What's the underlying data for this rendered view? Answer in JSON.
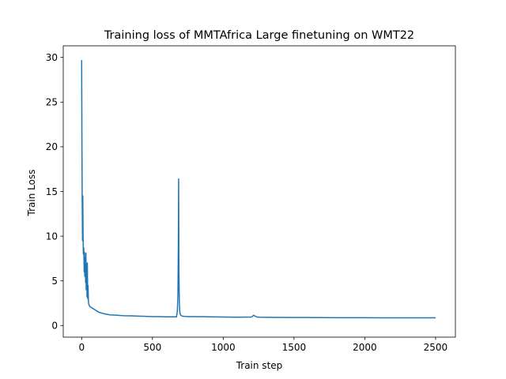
{
  "chart_data": {
    "type": "line",
    "title": "Training loss of MMTAfrica Large finetuning on WMT22",
    "xlabel": "Train step",
    "ylabel": "Train Loss",
    "xlim": [
      -130,
      2640
    ],
    "ylim": [
      -1.3,
      31.3
    ],
    "xticks": [
      0,
      500,
      1000,
      1500,
      2000,
      2500
    ],
    "yticks": [
      0,
      5,
      10,
      15,
      20,
      25,
      30
    ],
    "grid": false,
    "legend": "none",
    "series": [
      {
        "color": "#1f77b4",
        "x": [
          0,
          2,
          4,
          6,
          8,
          10,
          12,
          15,
          18,
          20,
          22,
          25,
          28,
          30,
          32,
          35,
          38,
          40,
          43,
          45,
          48,
          50,
          55,
          60,
          70,
          80,
          100,
          120,
          150,
          180,
          200,
          250,
          300,
          350,
          400,
          450,
          500,
          550,
          600,
          650,
          670,
          676,
          680,
          683,
          685,
          687,
          690,
          693,
          696,
          700,
          710,
          730,
          760,
          800,
          900,
          1000,
          1100,
          1200,
          1215,
          1225,
          1240,
          1260,
          1300,
          1400,
          1500,
          1600,
          1700,
          1800,
          1900,
          2000,
          2100,
          2200,
          2300,
          2400,
          2500
        ],
        "y": [
          29.7,
          19.8,
          14.0,
          9.5,
          14.5,
          10.2,
          8.0,
          8.7,
          6.0,
          8.2,
          5.5,
          7.6,
          4.8,
          8.1,
          4.0,
          6.9,
          3.2,
          7.0,
          3.0,
          4.5,
          2.7,
          2.4,
          2.2,
          2.1,
          2.0,
          1.9,
          1.7,
          1.5,
          1.35,
          1.25,
          1.2,
          1.15,
          1.1,
          1.08,
          1.05,
          1.03,
          1.0,
          1.0,
          0.98,
          0.97,
          0.98,
          1.6,
          3.5,
          9.0,
          16.4,
          6.0,
          2.5,
          1.6,
          1.3,
          1.15,
          1.05,
          1.02,
          1.0,
          1.0,
          0.98,
          0.95,
          0.93,
          0.95,
          1.15,
          1.05,
          0.95,
          0.93,
          0.92,
          0.91,
          0.9,
          0.9,
          0.89,
          0.88,
          0.88,
          0.88,
          0.87,
          0.87,
          0.87,
          0.86,
          0.86
        ]
      }
    ]
  }
}
